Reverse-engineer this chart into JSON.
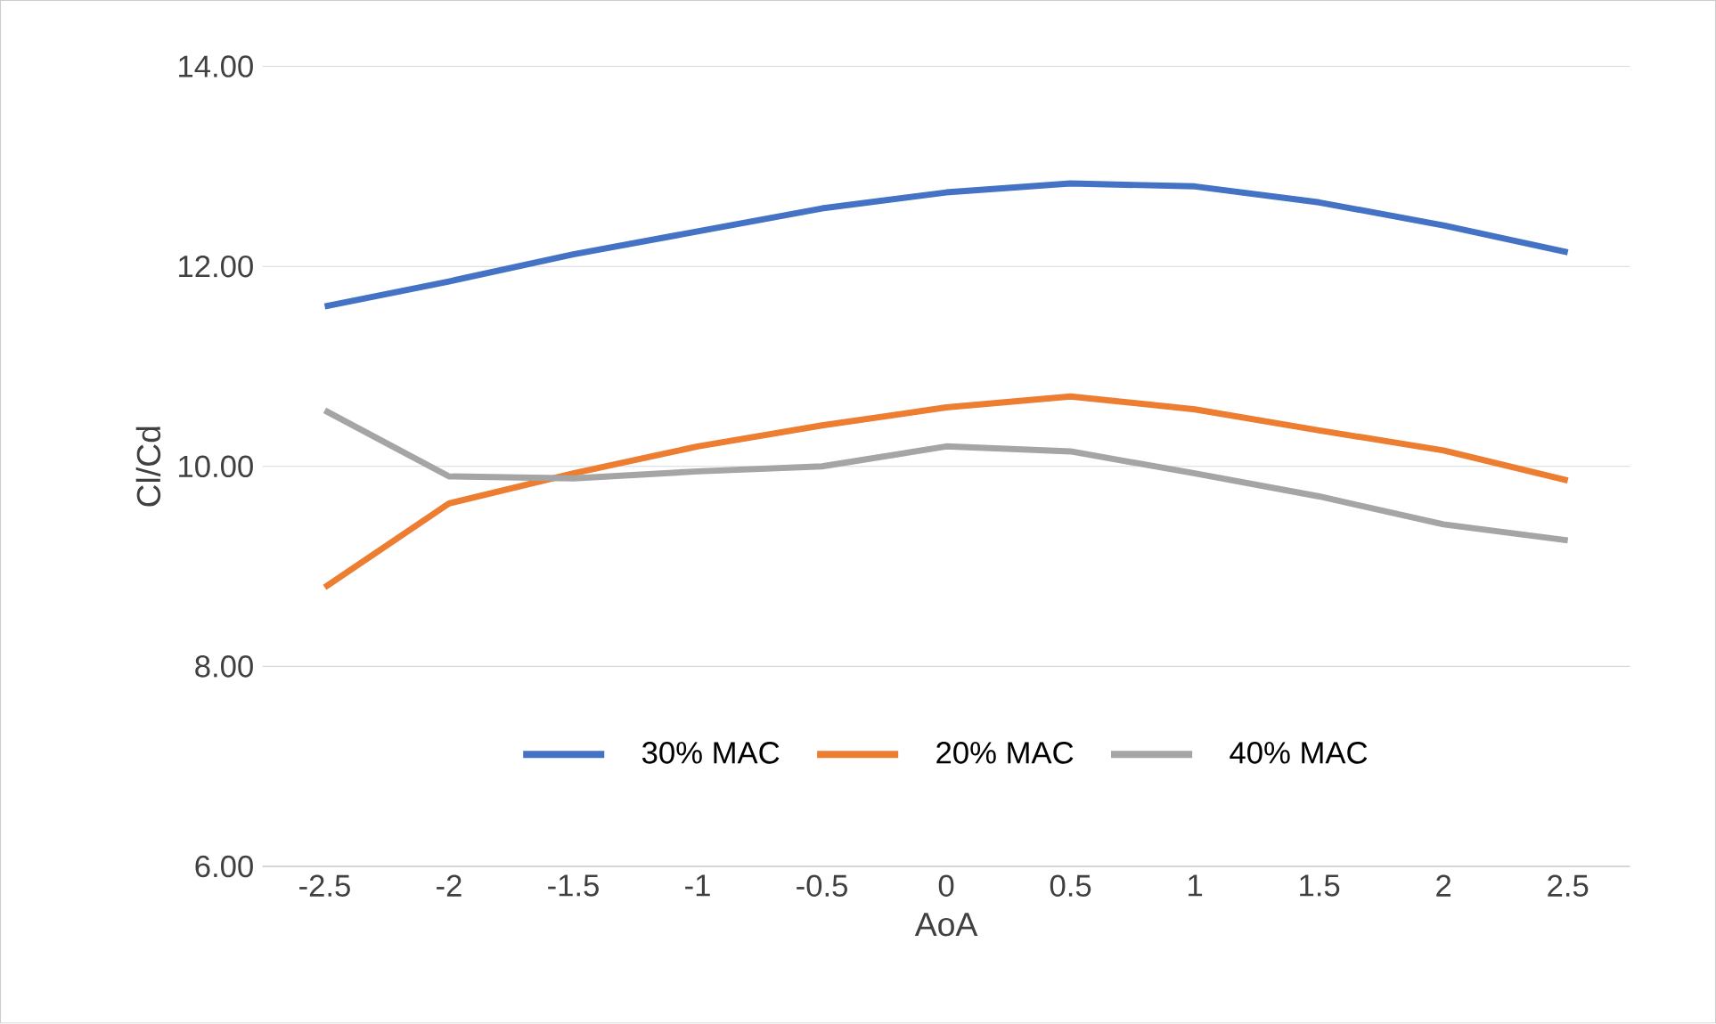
{
  "chart_data": {
    "type": "line",
    "xlabel": "AoA",
    "ylabel": "Cl/Cd",
    "categories": [
      "-2.5",
      "-2",
      "-1.5",
      "-1",
      "-0.5",
      "0",
      "0.5",
      "1",
      "1.5",
      "2",
      "2.5"
    ],
    "series": [
      {
        "name": "30% MAC",
        "color": "#4472c4",
        "values": [
          11.6,
          11.85,
          12.12,
          12.35,
          12.58,
          12.74,
          12.83,
          12.8,
          12.64,
          12.41,
          12.14
        ]
      },
      {
        "name": "20% MAC",
        "color": "#ed7d31",
        "values": [
          8.79,
          9.63,
          9.93,
          10.2,
          10.41,
          10.59,
          10.7,
          10.57,
          10.36,
          10.16,
          9.86
        ]
      },
      {
        "name": "40% MAC",
        "color": "#a5a5a5",
        "values": [
          10.56,
          9.9,
          9.88,
          9.95,
          10.0,
          10.2,
          10.15,
          9.93,
          9.7,
          9.42,
          9.26
        ]
      }
    ],
    "ylim": [
      6,
      14
    ],
    "yticks": [
      {
        "value": 6,
        "label": "6.00"
      },
      {
        "value": 8,
        "label": "8.00"
      },
      {
        "value": 10,
        "label": "10.00"
      },
      {
        "value": 12,
        "label": "12.00"
      },
      {
        "value": 14,
        "label": "14.00"
      }
    ],
    "grid": "y",
    "legend": "bottom"
  }
}
